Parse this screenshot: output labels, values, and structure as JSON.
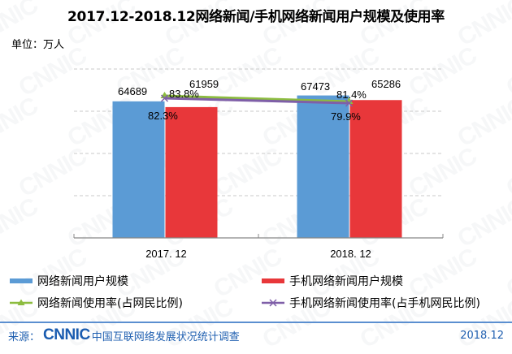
{
  "title": "2017.12-2018.12网络新闻/手机网络新闻用户规模及使用率",
  "unit": "单位：万人",
  "watermark_text": "CNNIC",
  "colors": {
    "news_users": "#5b9bd5",
    "mobile_news_users": "#e8373a",
    "news_rate": "#8cbc3f",
    "mobile_news_rate": "#7f5fa8",
    "gridline": "#c8c8c8",
    "axis": "#888888",
    "footer_blue": "#1f5fb0"
  },
  "chart_data": {
    "type": "bar",
    "title": "2017.12-2018.12网络新闻/手机网络新闻用户规模及使用率",
    "xlabel": "",
    "ylabel": "万人",
    "categories": [
      "2017. 12",
      "2018. 12"
    ],
    "ylim": [
      0,
      80000
    ],
    "grid": true,
    "legend_position": "bottom",
    "series": [
      {
        "name": "网络新闻用户规模",
        "kind": "bar",
        "values": [
          64689,
          67473
        ],
        "labels": [
          "64689",
          "67473"
        ]
      },
      {
        "name": "手机网络新闻用户规模",
        "kind": "bar",
        "values": [
          61959,
          65286
        ],
        "labels": [
          "61959",
          "65286"
        ]
      },
      {
        "name": "网络新闻使用率(占网民比例)",
        "kind": "line",
        "marker": "triangle",
        "values": [
          83.8,
          81.4
        ],
        "labels": [
          "83.8%",
          "81.4%"
        ]
      },
      {
        "name": "手机网络新闻使用率(占手机网民比例)",
        "kind": "line",
        "marker": "x",
        "values": [
          82.3,
          79.9
        ],
        "labels": [
          "82.3%",
          "79.9%"
        ]
      }
    ]
  },
  "legend": {
    "items": [
      {
        "label": "网络新闻用户规模"
      },
      {
        "label": "手机网络新闻用户规模"
      },
      {
        "label": "网络新闻使用率(占网民比例)"
      },
      {
        "label": "手机网络新闻使用率(占手机网民比例)"
      }
    ]
  },
  "footer": {
    "source_label": "来源：",
    "logo": "CNNIC",
    "org": "中国互联网络发展状况统计调查",
    "date": "2018.12"
  }
}
